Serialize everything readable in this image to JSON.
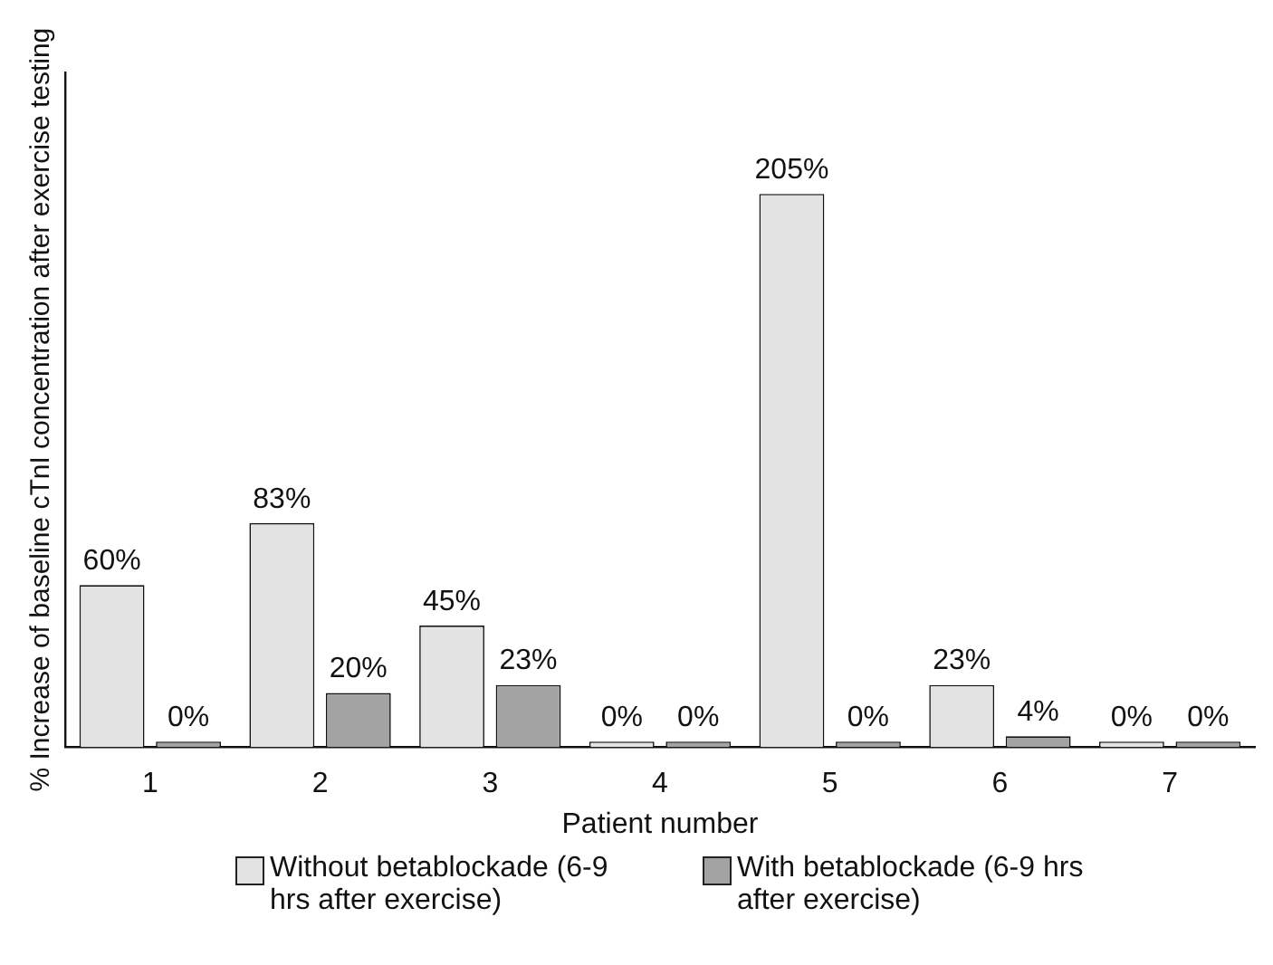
{
  "chart_data": {
    "type": "bar",
    "xlabel": "Patient number",
    "ylabel": "% Increase of baseline cTnI concentration after exercise testing",
    "categories": [
      "1",
      "2",
      "3",
      "4",
      "5",
      "6",
      "7"
    ],
    "series": [
      {
        "name": "Without betablockade (6-9 hrs after exercise)",
        "color": "#e3e3e3",
        "values": [
          60,
          83,
          45,
          0,
          205,
          23,
          0
        ],
        "value_labels": [
          "60%",
          "83%",
          "45%",
          "0%",
          "205%",
          "23%",
          "0%"
        ]
      },
      {
        "name": "With betablockade (6-9 hrs after exercise)",
        "color": "#a3a3a3",
        "values": [
          0,
          20,
          23,
          0,
          0,
          4,
          0
        ],
        "value_labels": [
          "0%",
          "20%",
          "23%",
          "0%",
          "0%",
          "4%",
          "0%"
        ]
      }
    ],
    "ylim": [
      0,
      250
    ],
    "tick_labels": "x",
    "grid": false,
    "legend": "bottom"
  }
}
